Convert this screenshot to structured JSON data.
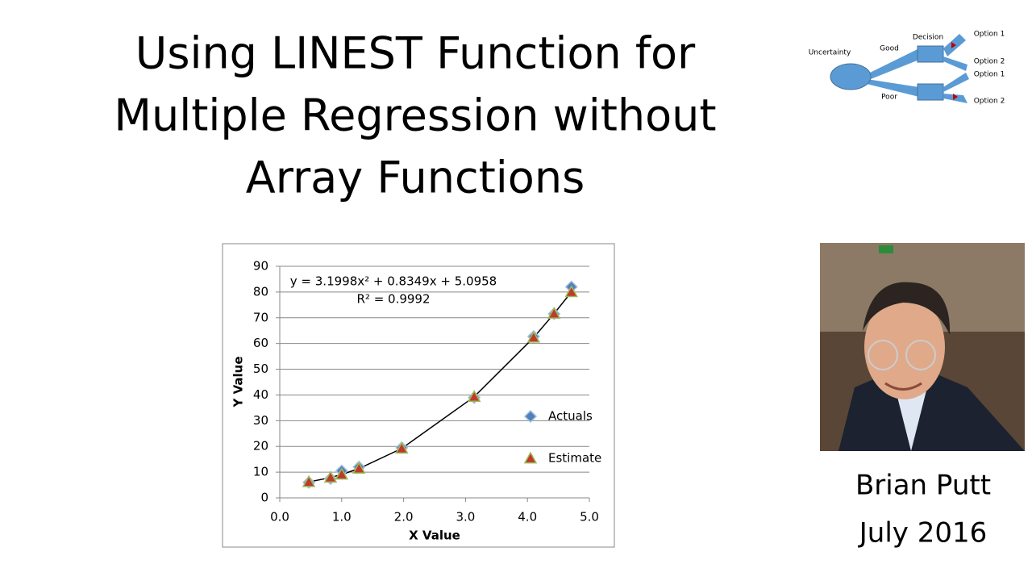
{
  "slide_title": [
    "Using LINEST Function for",
    "Multiple Regression without",
    "Array Functions"
  ],
  "diagram": {
    "labels": [
      "Uncertainty",
      "Good",
      "Decision",
      "Option 1",
      "Option 2",
      "Option 1",
      "Option 2",
      "Poor"
    ]
  },
  "author": {
    "name": "Brian Putt",
    "date": "July 2016"
  },
  "chart_data": {
    "type": "scatter",
    "x_label": "X Value",
    "y_label": "Y Value",
    "annotations": [
      "y = 3.1998x² + 0.8349x + 5.0958",
      "R² = 0.9992"
    ],
    "xlim": [
      0,
      5
    ],
    "ylim": [
      0,
      90
    ],
    "xticks": [
      {
        "value": 0,
        "label": "0.0"
      },
      {
        "value": 1,
        "label": "1.0"
      },
      {
        "value": 2,
        "label": "2.0"
      },
      {
        "value": 3,
        "label": "3.0"
      },
      {
        "value": 4,
        "label": "4.0"
      },
      {
        "value": 5,
        "label": "5.0"
      }
    ],
    "yticks": [
      0,
      10,
      20,
      30,
      40,
      50,
      60,
      70,
      80,
      90
    ],
    "grid": true,
    "legend": "right",
    "series": [
      {
        "name": "Actuals",
        "color": "#4f81bd",
        "marker": "diamond",
        "x": [
          0.47,
          0.82,
          1.0,
          1.28,
          1.97,
          3.14,
          4.1,
          4.43,
          4.71
        ],
        "values": [
          6,
          7.5,
          10.5,
          12,
          19.5,
          39,
          62.7,
          71.5,
          82
        ]
      },
      {
        "name": "Estimate",
        "color": "#c0392b",
        "marker": "triangle",
        "trendline": true,
        "x": [
          0.47,
          0.82,
          1.0,
          1.28,
          1.97,
          3.14,
          4.1,
          4.43,
          4.71
        ],
        "values": [
          6.2,
          7.9,
          9.1,
          11.4,
          19.2,
          39.3,
          62.3,
          71.6,
          80.0
        ]
      }
    ]
  }
}
